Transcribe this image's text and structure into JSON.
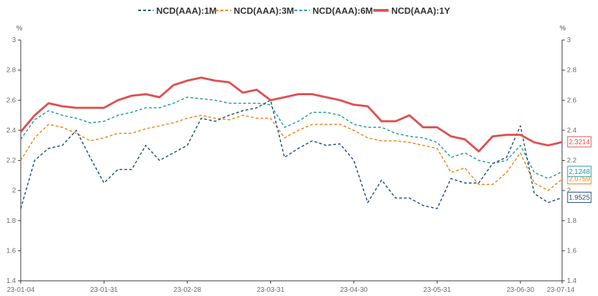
{
  "chart_data": {
    "type": "line",
    "y_unit_left": "%",
    "y_unit_right": "%",
    "ylim": [
      1.4,
      3.0
    ],
    "yticks": [
      "1.4",
      "1.6",
      "1.8",
      "2",
      "2.2",
      "2.4",
      "2.6",
      "2.8",
      "3"
    ],
    "xticks": [
      "23-01-04",
      "23-01-31",
      "23-02-28",
      "23-03-31",
      "23-04-30",
      "23-05-31",
      "23-06-30",
      "23-07-14"
    ],
    "x": [
      "01-04",
      "01-09",
      "01-12",
      "01-16",
      "01-19",
      "01-23",
      "01-31",
      "02-03",
      "02-08",
      "02-13",
      "02-18",
      "02-23",
      "02-28",
      "03-03",
      "03-08",
      "03-13",
      "03-18",
      "03-23",
      "03-31",
      "04-05",
      "04-10",
      "04-15",
      "04-20",
      "04-25",
      "04-30",
      "05-05",
      "05-10",
      "05-15",
      "05-20",
      "05-25",
      "05-31",
      "06-05",
      "06-10",
      "06-15",
      "06-20",
      "06-25",
      "06-30",
      "07-05",
      "07-10",
      "07-14"
    ],
    "series": [
      {
        "name": "NCD(AAA):1M",
        "color": "#1f4e79",
        "style": "dashed",
        "end_value": "1.9525",
        "values": [
          1.88,
          2.2,
          2.28,
          2.3,
          2.4,
          2.22,
          2.05,
          2.14,
          2.14,
          2.3,
          2.2,
          2.25,
          2.3,
          2.48,
          2.46,
          2.5,
          2.53,
          2.55,
          2.6,
          2.22,
          2.28,
          2.33,
          2.3,
          2.31,
          2.2,
          1.92,
          2.07,
          1.95,
          1.95,
          1.9,
          1.88,
          2.08,
          2.05,
          2.05,
          2.18,
          2.22,
          2.43,
          1.98,
          1.92,
          1.9525
        ]
      },
      {
        "name": "NCD(AAA):3M",
        "color": "#f0820f",
        "style": "dashed",
        "end_value": "2.0759",
        "values": [
          2.2,
          2.35,
          2.44,
          2.42,
          2.38,
          2.33,
          2.35,
          2.38,
          2.38,
          2.41,
          2.43,
          2.45,
          2.48,
          2.5,
          2.48,
          2.47,
          2.5,
          2.48,
          2.48,
          2.35,
          2.4,
          2.44,
          2.44,
          2.44,
          2.4,
          2.35,
          2.33,
          2.33,
          2.32,
          2.3,
          2.28,
          2.12,
          2.15,
          2.04,
          2.04,
          2.12,
          2.25,
          2.05,
          2.0,
          2.0759
        ]
      },
      {
        "name": "NCD(AAA):6M",
        "color": "#1d9a9e",
        "style": "dashed",
        "end_value": "2.1248",
        "values": [
          2.34,
          2.47,
          2.53,
          2.5,
          2.48,
          2.45,
          2.46,
          2.5,
          2.52,
          2.55,
          2.55,
          2.58,
          2.62,
          2.61,
          2.6,
          2.58,
          2.58,
          2.58,
          2.57,
          2.42,
          2.46,
          2.52,
          2.52,
          2.5,
          2.44,
          2.42,
          2.42,
          2.38,
          2.36,
          2.35,
          2.32,
          2.22,
          2.25,
          2.2,
          2.18,
          2.2,
          2.3,
          2.12,
          2.08,
          2.1248
        ]
      },
      {
        "name": "NCD(AAA):1Y",
        "color": "#e05050",
        "style": "solid",
        "end_value": "2.3214",
        "values": [
          2.39,
          2.5,
          2.58,
          2.56,
          2.55,
          2.55,
          2.55,
          2.6,
          2.63,
          2.64,
          2.62,
          2.7,
          2.73,
          2.75,
          2.73,
          2.72,
          2.65,
          2.67,
          2.6,
          2.62,
          2.64,
          2.64,
          2.62,
          2.6,
          2.57,
          2.56,
          2.46,
          2.46,
          2.5,
          2.42,
          2.42,
          2.36,
          2.34,
          2.26,
          2.36,
          2.37,
          2.37,
          2.32,
          2.3,
          2.3214
        ]
      }
    ]
  }
}
